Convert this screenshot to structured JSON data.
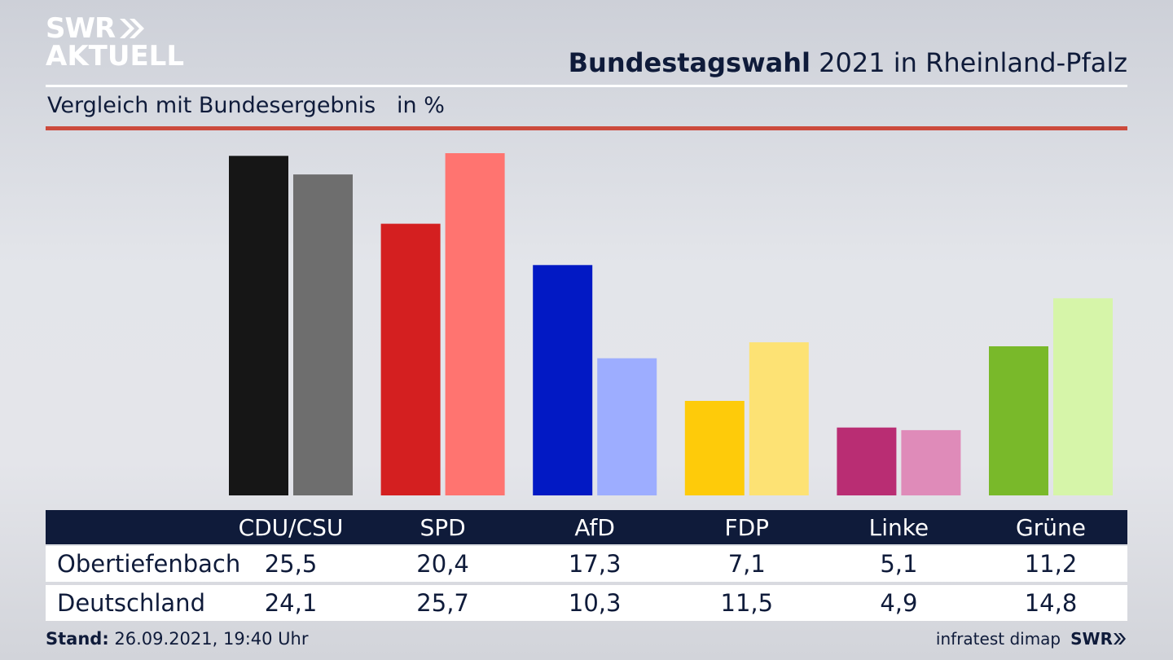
{
  "logo": {
    "line1": "SWR",
    "line2": "AKTUELL"
  },
  "header": {
    "title_bold": "Bundestagswahl",
    "title_rest": " 2021 in Rheinland-Pfalz",
    "subtitle": "Vergleich mit Bundesergebnis   in %"
  },
  "footer": {
    "stand_label": "Stand:",
    "stand_value": " 26.09.2021, 19:40 Uhr",
    "source": "infratest dimap",
    "brand": "SWR"
  },
  "table": {
    "headers": [
      "CDU/CSU",
      "SPD",
      "AfD",
      "FDP",
      "Linke",
      "Grüne"
    ],
    "rows": [
      {
        "label": "Obertiefenbach",
        "values": [
          "25,5",
          "20,4",
          "17,3",
          "7,1",
          "5,1",
          "11,2"
        ]
      },
      {
        "label": "Deutschland",
        "values": [
          "24,1",
          "25,7",
          "10,3",
          "11,5",
          "4,9",
          "14,8"
        ]
      }
    ]
  },
  "chart_data": {
    "type": "bar",
    "categories": [
      "CDU/CSU",
      "SPD",
      "AfD",
      "FDP",
      "Linke",
      "Grüne"
    ],
    "series": [
      {
        "name": "Obertiefenbach",
        "values": [
          25.5,
          20.4,
          17.3,
          7.1,
          5.1,
          11.2
        ]
      },
      {
        "name": "Deutschland",
        "values": [
          24.1,
          25.7,
          10.3,
          11.5,
          4.9,
          14.8
        ]
      }
    ],
    "colors": {
      "local": [
        "#161616",
        "#d41f20",
        "#0219c4",
        "#fecb0a",
        "#b92d73",
        "#79b92a"
      ],
      "national": [
        "#6e6e6e",
        "#ff7470",
        "#9dadff",
        "#fde274",
        "#df8bb9",
        "#d6f5a9"
      ]
    },
    "ylim": [
      0,
      25.7
    ],
    "grid": false,
    "legend": "none"
  }
}
